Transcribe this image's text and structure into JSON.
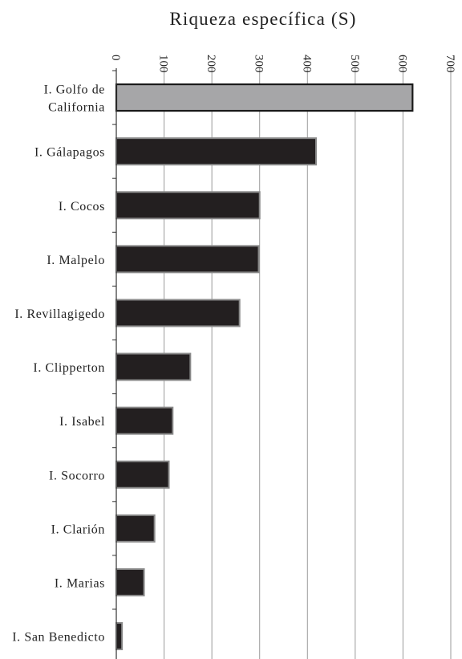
{
  "chart_data": {
    "type": "bar",
    "orientation": "horizontal",
    "title": "Riqueza específica (S)",
    "xlabel": "",
    "ylabel": "",
    "xlim": [
      0,
      700
    ],
    "xticks": [
      0,
      100,
      200,
      300,
      400,
      500,
      600,
      700
    ],
    "x_axis_position": "top",
    "tick_label_rotation": "vertical",
    "grid": "vertical",
    "legend": "none",
    "categories": [
      [
        "I. Golfo de",
        "California"
      ],
      [
        "I. Gálapagos"
      ],
      [
        "I. Cocos"
      ],
      [
        "I. Malpelo"
      ],
      [
        "I. Revillagigedo"
      ],
      [
        "I. Clipperton"
      ],
      [
        "I. Isabel"
      ],
      [
        "I. Socorro"
      ],
      [
        "I. Clarión"
      ],
      [
        "I. Marias"
      ],
      [
        "I. San Benedicto"
      ]
    ],
    "values": [
      620,
      418,
      300,
      298,
      258,
      155,
      118,
      110,
      80,
      58,
      12
    ],
    "bar_colors": [
      "#a6a6a8",
      "#231f20",
      "#231f20",
      "#231f20",
      "#231f20",
      "#231f20",
      "#231f20",
      "#231f20",
      "#231f20",
      "#231f20",
      "#231f20"
    ],
    "highlight_edge_color": "#1a1a1a",
    "bar_edge_color": "#8a8a8a",
    "grid_color": "#9a9a9a"
  }
}
